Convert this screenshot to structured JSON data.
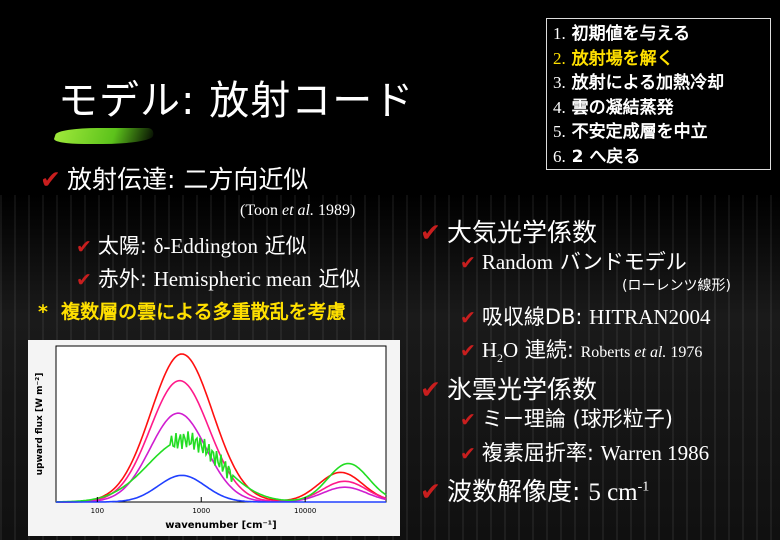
{
  "title": "モデル: 放射コード",
  "steps": [
    {
      "num": "1.",
      "label": "初期値を与える",
      "highlight": false
    },
    {
      "num": "2.",
      "label": "放射場を解く",
      "highlight": true
    },
    {
      "num": "3.",
      "label": "放射による加熱冷却",
      "highlight": false
    },
    {
      "num": "4.",
      "label": "雲の凝結蒸発",
      "highlight": false
    },
    {
      "num": "5.",
      "label": "不安定成層を中立",
      "highlight": false
    },
    {
      "num": "6.",
      "label": "2 へ戻る",
      "highlight": false
    }
  ],
  "left": {
    "heading_jp": "放射伝達: ",
    "heading_value": "二方向近似",
    "ref_pre": "(Toon ",
    "ref_em": "et al.",
    "ref_post": " 1989)",
    "solar_label": "太陽: ",
    "solar_value": "δ-Eddington",
    "solar_suffix": " 近似",
    "ir_label": "赤外: ",
    "ir_value": "Hemispheric mean",
    "ir_suffix": " 近似",
    "note_star": "*",
    "note": "複数層の雲による多重散乱を考慮"
  },
  "right": {
    "atm_heading": "大気光学係数",
    "band_value": "Random",
    "band_suffix": " バンドモデル",
    "band_note": "(ローレンツ線形)",
    "abs_label": "吸収線DB: ",
    "abs_value": "HITRAN2004",
    "h2o_h": "H",
    "h2o_sub": "2",
    "h2o_o": "O",
    "h2o_label": " 連続: ",
    "h2o_ref_pre": "Roberts ",
    "h2o_ref_em": "et al.",
    "h2o_ref_post": " 1976",
    "ice_heading": "氷雲光学係数",
    "mie": "ミー理論 (球形粒子)",
    "refr_label": "複素屈折率: ",
    "refr_value": "Warren 1986",
    "res_label": "波数解像度: ",
    "res_value": "5 cm",
    "res_sup": "-1"
  },
  "colors": {
    "check": "#c81e1e",
    "highlight": "#ffe000",
    "accent_brush": "#7ed62a"
  },
  "chart_data": {
    "type": "line",
    "xlabel": "wavenumber [cm⁻¹]",
    "ylabel": "upward flux [W m⁻²]",
    "x_scale": "log",
    "x_ticks": [
      "100",
      "1000",
      "10000"
    ],
    "x_tick_values": [
      100,
      1000,
      10000
    ],
    "xlim": [
      40,
      60000
    ],
    "series": [
      {
        "color": "#ff1010",
        "peaks": [
          {
            "x": 650,
            "h": 1.0,
            "w": 0.42
          },
          {
            "x": 22000,
            "h": 0.2,
            "w": 0.3
          }
        ]
      },
      {
        "color": "#ff1a8a",
        "peaks": [
          {
            "x": 620,
            "h": 0.82,
            "w": 0.4
          },
          {
            "x": 24000,
            "h": 0.14,
            "w": 0.3
          }
        ]
      },
      {
        "color": "#d01ed0",
        "peaks": [
          {
            "x": 600,
            "h": 0.6,
            "w": 0.38
          },
          {
            "x": 24000,
            "h": 0.1,
            "w": 0.3
          }
        ]
      },
      {
        "color": "#22dd22",
        "peaks": [
          {
            "x": 700,
            "h": 0.42,
            "w": 0.5
          },
          {
            "x": 26000,
            "h": 0.26,
            "w": 0.28
          }
        ]
      },
      {
        "color": "#2040ff",
        "peaks": [
          {
            "x": 650,
            "h": 0.18,
            "w": 0.32
          }
        ]
      }
    ]
  }
}
